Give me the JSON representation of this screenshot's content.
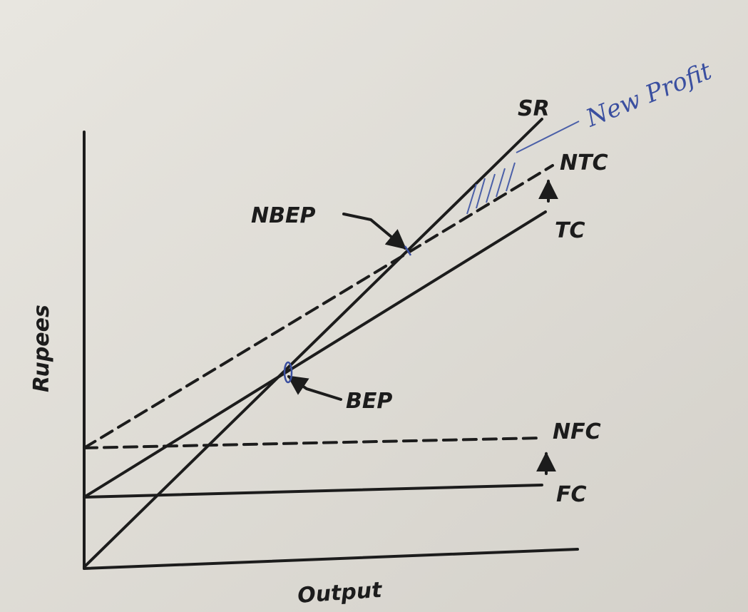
{
  "diagram": {
    "y_axis_label": "Rupees",
    "x_axis_label": "Output",
    "lines": [
      {
        "label": "SR"
      },
      {
        "label": "NTC"
      },
      {
        "label": "TC"
      },
      {
        "label": "NFC"
      },
      {
        "label": "FC"
      }
    ],
    "points": [
      {
        "label": "NBEP"
      },
      {
        "label": "BEP"
      }
    ],
    "annotation": "New Profit"
  }
}
